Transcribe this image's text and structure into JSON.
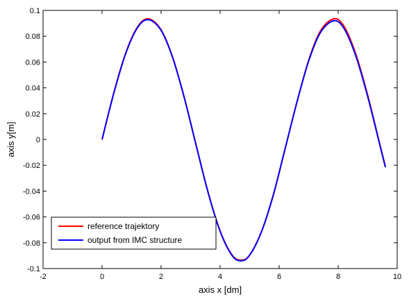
{
  "chart_data": {
    "type": "line",
    "xlabel": "axis x [dm]",
    "ylabel": "axis y[m]",
    "xlim": [
      -2,
      10
    ],
    "ylim": [
      -0.1,
      0.1
    ],
    "xticks": [
      "-2",
      "0",
      "2",
      "4",
      "6",
      "8",
      "10"
    ],
    "yticks": [
      "-0.1",
      "-0.08",
      "-0.06",
      "-0.04",
      "-0.02",
      "0",
      "0.02",
      "0.04",
      "0.06",
      "0.08",
      "0.1"
    ],
    "grid": false,
    "legend_position": "bottom-left",
    "series": [
      {
        "name": "reference trajektory",
        "color": "#ff0000",
        "x": [
          0.0,
          0.4,
          0.8,
          1.2,
          1.57,
          2.0,
          2.4,
          2.8,
          3.2,
          3.6,
          4.0,
          4.4,
          4.71,
          5.0,
          5.4,
          5.8,
          6.2,
          6.6,
          7.0,
          7.4,
          7.85,
          8.2,
          8.6,
          9.0,
          9.4,
          9.6
        ],
        "y": [
          0.0,
          0.0365,
          0.067,
          0.0872,
          0.0935,
          0.085,
          0.0632,
          0.0313,
          -0.0055,
          -0.0414,
          -0.0708,
          -0.0893,
          -0.0935,
          -0.0895,
          -0.0716,
          -0.0434,
          -0.0076,
          0.0289,
          0.0614,
          0.0841,
          0.0935,
          0.0877,
          0.066,
          0.0344,
          -0.0026,
          -0.0208
        ]
      },
      {
        "name": "output from IMC structure",
        "color": "#0000ff",
        "x": [
          0.0,
          0.4,
          0.8,
          1.2,
          1.57,
          2.0,
          2.4,
          2.8,
          3.2,
          3.6,
          4.0,
          4.4,
          4.71,
          5.0,
          5.4,
          5.8,
          6.2,
          6.6,
          7.0,
          7.4,
          7.85,
          8.2,
          8.6,
          9.0,
          9.4,
          9.6
        ],
        "y": [
          0.0,
          0.036,
          0.0665,
          0.0866,
          0.0928,
          0.0845,
          0.0628,
          0.031,
          -0.0058,
          -0.0418,
          -0.0712,
          -0.0898,
          -0.094,
          -0.0897,
          -0.0715,
          -0.043,
          -0.0072,
          0.0286,
          0.0607,
          0.0829,
          0.092,
          0.086,
          0.0645,
          0.0333,
          -0.0032,
          -0.0215
        ]
      }
    ]
  }
}
